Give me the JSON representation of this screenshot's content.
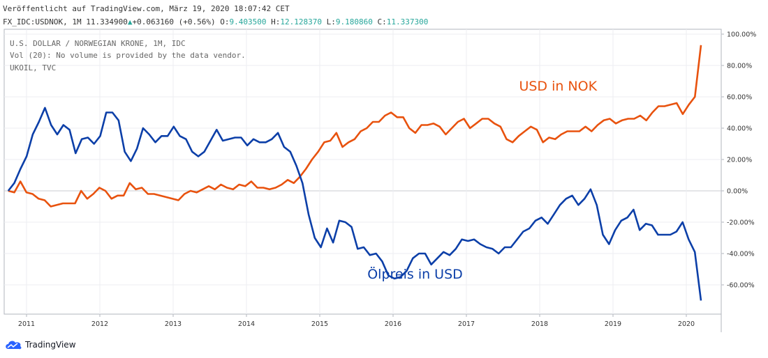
{
  "header": {
    "published": "Veröffentlicht auf TradingView.com, März 19, 2020 18:07:42 CET",
    "symbol": "FX_IDC:USDNOK, 1M",
    "last": "11.334900",
    "change": "+0.063160 (+0.56%)",
    "o_label": "O:",
    "o_val": "9.403500",
    "h_label": "H:",
    "h_val": "12.128370",
    "l_label": "L:",
    "l_val": "9.180860",
    "c_label": "C:",
    "c_val": "11.337300"
  },
  "legend": {
    "line1": "U.S. DOLLAR / NORWEGIAN KRONE, 1M, IDC",
    "line2": "Vol (20): No volume is provided by the data vendor.",
    "line3": "UKOIL, TVC"
  },
  "brand": {
    "name": "TradingView"
  },
  "chart_data": {
    "type": "line",
    "x_start": "2010-10",
    "x_unit": "month",
    "x_tick_labels": [
      "2011",
      "2012",
      "2013",
      "2014",
      "2015",
      "2016",
      "2017",
      "2018",
      "2019",
      "2020"
    ],
    "y_tick_labels": [
      "100.00%",
      "80.00%",
      "60.00%",
      "40.00%",
      "20.00%",
      "0.00%",
      "-20.00%",
      "-40.00%",
      "-60.00%"
    ],
    "y_ticks": [
      100,
      80,
      60,
      40,
      20,
      0,
      -20,
      -40,
      -60
    ],
    "ylim": [
      -77,
      100
    ],
    "grid": true,
    "series": [
      {
        "name": "USD in NOK",
        "color": "#e8520e",
        "values": [
          0,
          -1,
          6,
          -1,
          -2,
          -5,
          -6,
          -10,
          -9,
          -8,
          -8,
          -8,
          0,
          -5,
          -2,
          2,
          0,
          -5,
          -3,
          -3,
          5,
          1,
          2,
          -2,
          -2,
          -3,
          -4,
          -5,
          -6,
          -2,
          0,
          -1,
          1,
          3,
          1,
          4,
          2,
          1,
          4,
          3,
          6,
          2,
          2,
          1,
          2,
          4,
          7,
          5,
          9,
          14,
          20,
          25,
          31,
          32,
          37,
          28,
          31,
          33,
          38,
          40,
          44,
          44,
          48,
          50,
          47,
          47,
          40,
          37,
          42,
          42,
          43,
          41,
          36,
          40,
          44,
          46,
          40,
          43,
          46,
          46,
          43,
          41,
          33,
          31,
          35,
          38,
          41,
          39,
          31,
          34,
          33,
          36,
          38,
          38,
          38,
          41,
          38,
          42,
          45,
          46,
          43,
          45,
          46,
          46,
          48,
          45,
          50,
          54,
          54,
          55,
          56,
          49,
          55,
          60,
          93
        ],
        "label_text": "USD in NOK",
        "label_at": [
          2018.25,
          64
        ]
      },
      {
        "name": "Ölpreis in USD",
        "color": "#0c3fa8",
        "values": [
          0,
          5,
          14,
          22,
          36,
          44,
          53,
          42,
          36,
          42,
          39,
          24,
          33,
          34,
          30,
          35,
          50,
          50,
          45,
          25,
          19,
          27,
          40,
          36,
          31,
          35,
          35,
          41,
          35,
          33,
          25,
          22,
          25,
          32,
          39,
          32,
          33,
          34,
          34,
          29,
          33,
          31,
          31,
          33,
          37,
          28,
          25,
          16,
          5,
          -15,
          -30,
          -36,
          -24,
          -33,
          -19,
          -20,
          -23,
          -37,
          -36,
          -41,
          -40,
          -45,
          -54,
          -56,
          -55,
          -51,
          -43,
          -40,
          -40,
          -47,
          -43,
          -39,
          -41,
          -37,
          -31,
          -32,
          -31,
          -34,
          -36,
          -37,
          -40,
          -36,
          -36,
          -31,
          -26,
          -24,
          -19,
          -17,
          -21,
          -15,
          -9,
          -5,
          -3,
          -9,
          -5,
          1,
          -9,
          -28,
          -34,
          -25,
          -19,
          -17,
          -12,
          -25,
          -21,
          -22,
          -28,
          -28,
          -28,
          -26,
          -20,
          -31,
          -39,
          -70
        ],
        "label_text": "Ölpreis in USD",
        "label_at": [
          2016.3,
          -56
        ]
      }
    ]
  }
}
